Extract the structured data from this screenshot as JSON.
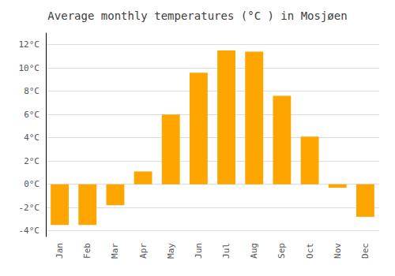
{
  "chart_data": {
    "type": "bar",
    "title": "Average monthly temperatures (°C ) in Mosjøen",
    "categories": [
      "Jan",
      "Feb",
      "Mar",
      "Apr",
      "May",
      "Jun",
      "Jul",
      "Aug",
      "Sep",
      "Oct",
      "Nov",
      "Dec"
    ],
    "values": [
      -3.5,
      -3.5,
      -1.8,
      1.1,
      6.0,
      9.6,
      11.5,
      11.4,
      7.6,
      4.1,
      -0.3,
      -2.8
    ],
    "color": "#FFA500",
    "ylim": [
      -4.5,
      13.0
    ],
    "yticks": [
      {
        "value": -4,
        "label": "-4°C"
      },
      {
        "value": -2,
        "label": "-2°C"
      },
      {
        "value": 0,
        "label": "0°C"
      },
      {
        "value": 2,
        "label": "2°C"
      },
      {
        "value": 4,
        "label": "4°C"
      },
      {
        "value": 6,
        "label": "6°C"
      },
      {
        "value": 8,
        "label": "8°C"
      },
      {
        "value": 10,
        "label": "10°C"
      },
      {
        "value": 12,
        "label": "12°C"
      }
    ],
    "grid": true
  }
}
